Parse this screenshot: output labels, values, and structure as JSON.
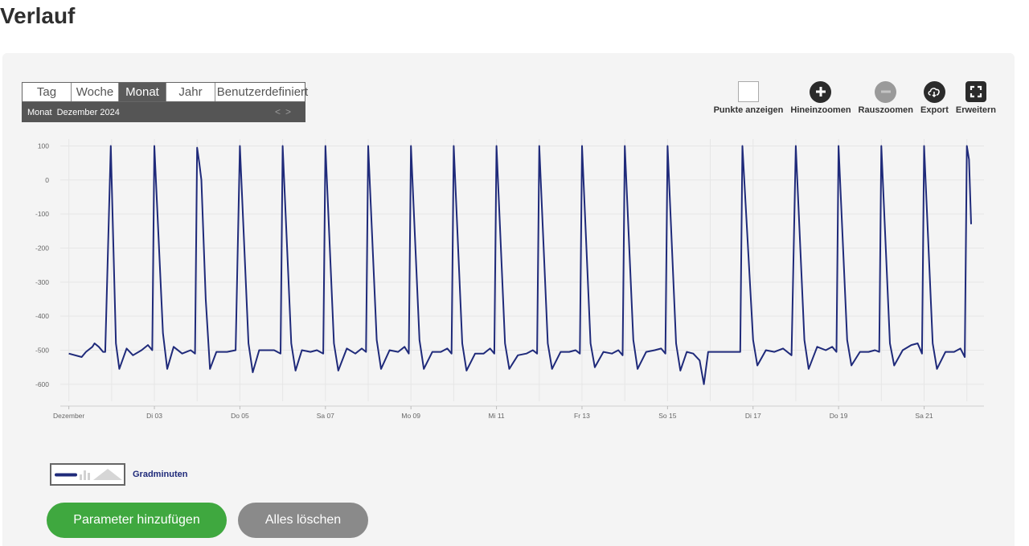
{
  "page": {
    "title": "Verlauf"
  },
  "period": {
    "tabs": [
      {
        "label": "Tag",
        "active": false
      },
      {
        "label": "Woche",
        "active": false
      },
      {
        "label": "Monat",
        "active": true
      },
      {
        "label": "Jahr",
        "active": false
      },
      {
        "label": "Benutzerdefiniert",
        "active": false
      }
    ],
    "mode_label": "Monat",
    "current": "Dezember 2024",
    "nav_prev": "<",
    "nav_next": ">"
  },
  "toolbar": {
    "show_points": "Punkte anzeigen",
    "zoom_in": "Hineinzoomen",
    "zoom_out": "Rauszoomen",
    "export": "Export",
    "expand": "Erweitern"
  },
  "chart_data": {
    "type": "line",
    "x_tick_labels": [
      "Dezember",
      "Di 03",
      "Do 05",
      "Sa 07",
      "Mo 09",
      "Mi 11",
      "Fr 13",
      "So 15",
      "Di 17",
      "Do 19",
      "Sa 21"
    ],
    "y_tick_labels": [
      "100",
      "0",
      "-100",
      "-200",
      "-300",
      "-400",
      "-500",
      "-600"
    ],
    "ylim": [
      -650,
      120
    ],
    "xlim": [
      0.8,
      22.4
    ],
    "grid": true,
    "color": "#1f2a7a",
    "series": [
      {
        "name": "Gradminuten",
        "points": [
          [
            1.0,
            -510
          ],
          [
            1.3,
            -520
          ],
          [
            1.4,
            -505
          ],
          [
            1.55,
            -490
          ],
          [
            1.6,
            -480
          ],
          [
            1.7,
            -490
          ],
          [
            1.8,
            -505
          ],
          [
            1.85,
            -505
          ],
          [
            1.98,
            100
          ],
          [
            2.1,
            -480
          ],
          [
            2.18,
            -555
          ],
          [
            2.35,
            -495
          ],
          [
            2.5,
            -515
          ],
          [
            2.7,
            -500
          ],
          [
            2.85,
            -485
          ],
          [
            2.95,
            -500
          ],
          [
            3.0,
            100
          ],
          [
            3.2,
            -450
          ],
          [
            3.3,
            -555
          ],
          [
            3.45,
            -490
          ],
          [
            3.65,
            -510
          ],
          [
            3.75,
            -505
          ],
          [
            3.85,
            -500
          ],
          [
            3.95,
            -510
          ],
          [
            4.0,
            95
          ],
          [
            4.05,
            50
          ],
          [
            4.1,
            0
          ],
          [
            4.2,
            -350
          ],
          [
            4.3,
            -555
          ],
          [
            4.45,
            -505
          ],
          [
            4.7,
            -505
          ],
          [
            4.9,
            -500
          ],
          [
            5.0,
            100
          ],
          [
            5.2,
            -480
          ],
          [
            5.3,
            -565
          ],
          [
            5.45,
            -500
          ],
          [
            5.6,
            -500
          ],
          [
            5.8,
            -500
          ],
          [
            5.95,
            -510
          ],
          [
            6.0,
            100
          ],
          [
            6.2,
            -480
          ],
          [
            6.3,
            -560
          ],
          [
            6.45,
            -500
          ],
          [
            6.65,
            -505
          ],
          [
            6.8,
            -500
          ],
          [
            6.95,
            -510
          ],
          [
            7.0,
            100
          ],
          [
            7.2,
            -480
          ],
          [
            7.3,
            -560
          ],
          [
            7.5,
            -495
          ],
          [
            7.7,
            -510
          ],
          [
            7.85,
            -495
          ],
          [
            7.95,
            -505
          ],
          [
            8.0,
            100
          ],
          [
            8.2,
            -470
          ],
          [
            8.3,
            -555
          ],
          [
            8.5,
            -500
          ],
          [
            8.7,
            -505
          ],
          [
            8.85,
            -490
          ],
          [
            8.95,
            -510
          ],
          [
            9.0,
            100
          ],
          [
            9.2,
            -470
          ],
          [
            9.3,
            -555
          ],
          [
            9.5,
            -505
          ],
          [
            9.7,
            -505
          ],
          [
            9.85,
            -495
          ],
          [
            9.95,
            -510
          ],
          [
            10.0,
            100
          ],
          [
            10.2,
            -480
          ],
          [
            10.3,
            -560
          ],
          [
            10.5,
            -510
          ],
          [
            10.7,
            -510
          ],
          [
            10.85,
            -495
          ],
          [
            10.95,
            -510
          ],
          [
            11.0,
            100
          ],
          [
            11.2,
            -480
          ],
          [
            11.3,
            -555
          ],
          [
            11.5,
            -515
          ],
          [
            11.7,
            -510
          ],
          [
            11.85,
            -500
          ],
          [
            11.95,
            -510
          ],
          [
            12.0,
            100
          ],
          [
            12.2,
            -480
          ],
          [
            12.3,
            -555
          ],
          [
            12.5,
            -505
          ],
          [
            12.7,
            -505
          ],
          [
            12.85,
            -500
          ],
          [
            12.95,
            -510
          ],
          [
            13.0,
            100
          ],
          [
            13.2,
            -480
          ],
          [
            13.3,
            -550
          ],
          [
            13.5,
            -505
          ],
          [
            13.7,
            -510
          ],
          [
            13.85,
            -500
          ],
          [
            13.95,
            -515
          ],
          [
            14.0,
            100
          ],
          [
            14.2,
            -470
          ],
          [
            14.3,
            -555
          ],
          [
            14.5,
            -505
          ],
          [
            14.7,
            -500
          ],
          [
            14.85,
            -495
          ],
          [
            14.95,
            -510
          ],
          [
            15.0,
            100
          ],
          [
            15.2,
            -480
          ],
          [
            15.3,
            -560
          ],
          [
            15.45,
            -505
          ],
          [
            15.6,
            -510
          ],
          [
            15.75,
            -530
          ],
          [
            15.85,
            -600
          ],
          [
            15.95,
            -505
          ],
          [
            16.7,
            -505
          ],
          [
            16.75,
            100
          ],
          [
            17.0,
            -470
          ],
          [
            17.1,
            -545
          ],
          [
            17.3,
            -500
          ],
          [
            17.5,
            -505
          ],
          [
            17.7,
            -495
          ],
          [
            17.9,
            -515
          ],
          [
            18.0,
            100
          ],
          [
            18.2,
            -470
          ],
          [
            18.3,
            -555
          ],
          [
            18.5,
            -490
          ],
          [
            18.7,
            -500
          ],
          [
            18.85,
            -490
          ],
          [
            18.95,
            -505
          ],
          [
            19.0,
            100
          ],
          [
            19.2,
            -470
          ],
          [
            19.3,
            -545
          ],
          [
            19.5,
            -505
          ],
          [
            19.7,
            -505
          ],
          [
            19.85,
            -500
          ],
          [
            19.95,
            -505
          ],
          [
            20.0,
            100
          ],
          [
            20.2,
            -480
          ],
          [
            20.3,
            -545
          ],
          [
            20.5,
            -500
          ],
          [
            20.7,
            -485
          ],
          [
            20.85,
            -480
          ],
          [
            20.95,
            -510
          ],
          [
            21.0,
            100
          ],
          [
            21.2,
            -480
          ],
          [
            21.3,
            -555
          ],
          [
            21.5,
            -505
          ],
          [
            21.7,
            -505
          ],
          [
            21.85,
            -495
          ],
          [
            21.95,
            -520
          ],
          [
            22.0,
            100
          ],
          [
            22.05,
            60
          ],
          [
            22.1,
            -130
          ]
        ]
      }
    ]
  },
  "legend": {
    "series_label": "Gradminuten"
  },
  "actions": {
    "add_parameter": "Parameter hinzufügen",
    "clear_all": "Alles löschen"
  }
}
